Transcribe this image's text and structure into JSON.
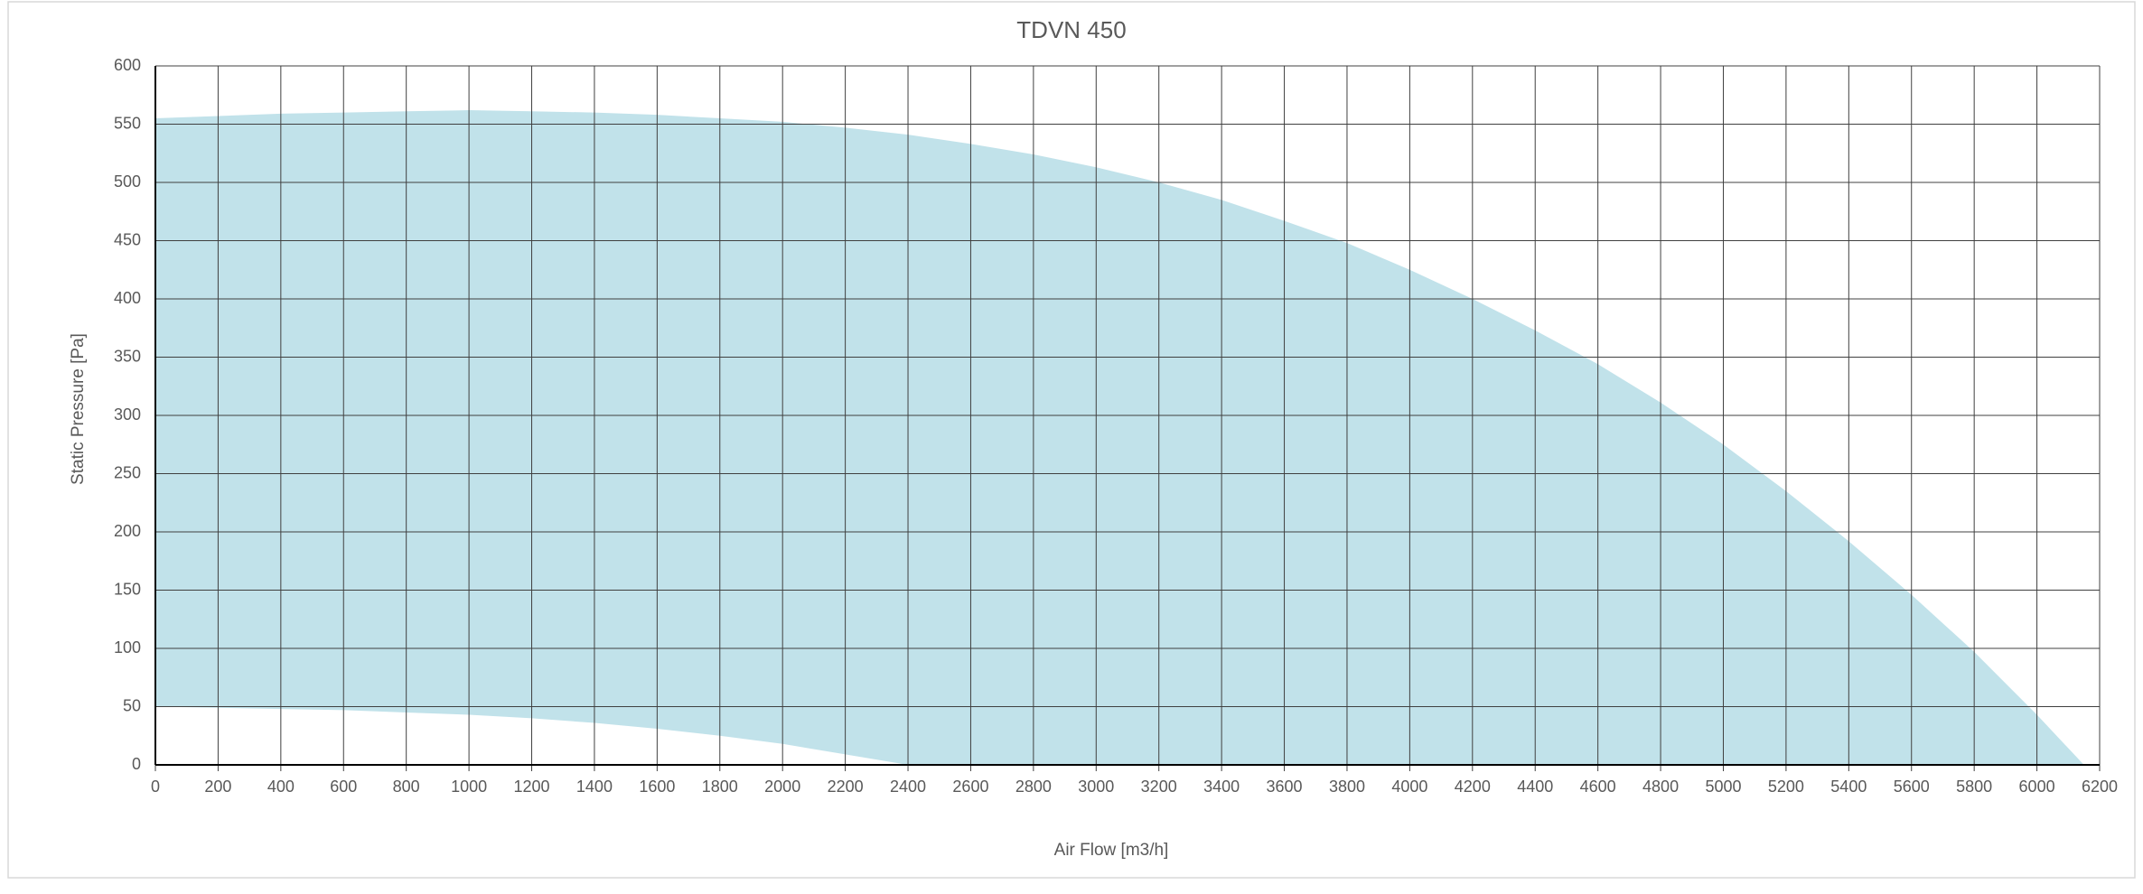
{
  "chart_data": {
    "type": "area",
    "title": "TDVN 450",
    "x_label": "Air Flow [m3/h]",
    "y_label": "Static Pressure [Pa]",
    "x": [
      0,
      200,
      400,
      600,
      800,
      1000,
      1200,
      1400,
      1600,
      1800,
      2000,
      2200,
      2400,
      2600,
      2800,
      3000,
      3200,
      3400,
      3600,
      3800,
      4000,
      4200,
      4400,
      4600,
      4800,
      5000,
      5200,
      5400,
      5600,
      5800,
      6000,
      6150
    ],
    "series": [
      {
        "color": "#c1e2ea",
        "values": [
          555,
          557,
          559,
          560,
          561,
          562,
          561,
          560,
          558,
          555,
          552,
          547,
          541,
          533,
          524,
          513,
          500,
          485,
          467,
          448,
          425,
          400,
          373,
          344,
          311,
          275,
          235,
          192,
          146,
          97,
          43,
          0
        ]
      },
      {
        "color": "#ffffff",
        "values": [
          50,
          49,
          48,
          47,
          45,
          43,
          40,
          36,
          31,
          25,
          18,
          9,
          0,
          0,
          0,
          0,
          0,
          0,
          0,
          0,
          0,
          0,
          0,
          0,
          0,
          0,
          0,
          0,
          0,
          0,
          0,
          0
        ]
      }
    ],
    "xlim": [
      0,
      6200
    ],
    "ylim": [
      0,
      600
    ],
    "xticks": [
      0,
      200,
      400,
      600,
      800,
      1000,
      1200,
      1400,
      1600,
      1800,
      2000,
      2200,
      2400,
      2600,
      2800,
      3000,
      3200,
      3400,
      3600,
      3800,
      4000,
      4200,
      4400,
      4600,
      4800,
      5000,
      5200,
      5400,
      5600,
      5800,
      6000,
      6200
    ],
    "yticks": [
      0,
      50,
      100,
      150,
      200,
      250,
      300,
      350,
      400,
      450,
      500,
      550,
      600
    ],
    "grid": true
  }
}
